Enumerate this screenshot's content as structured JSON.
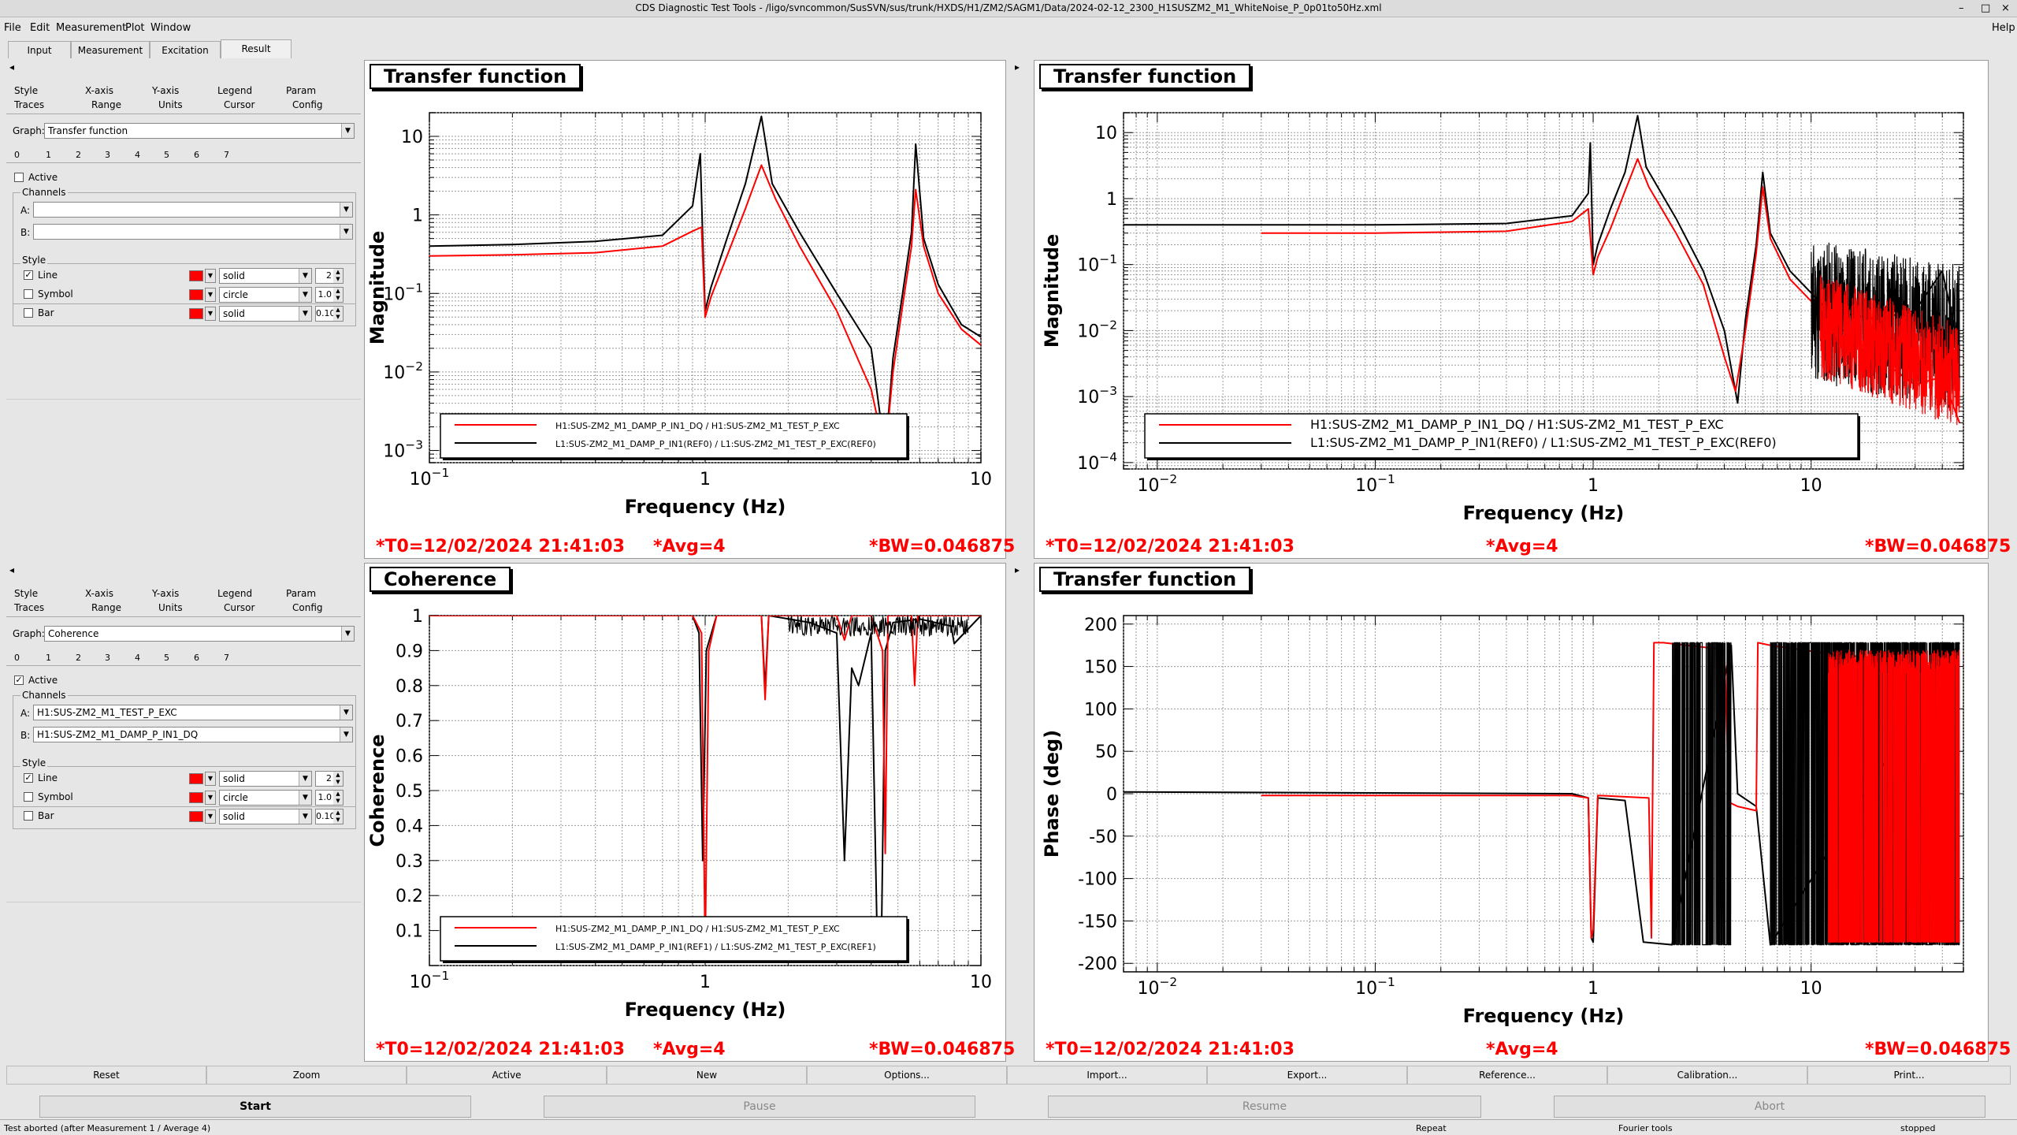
{
  "window": {
    "title": "CDS Diagnostic Test Tools - /ligo/svncommon/SusSVN/sus/trunk/HXDS/H1/ZM2/SAGM1/Data/2024-02-12_2300_H1SUSZM2_M1_WhiteNoise_P_0p01to50Hz.xml",
    "controls": [
      "–",
      "□",
      "×"
    ]
  },
  "menu": {
    "items": [
      "File",
      "Edit",
      "Measurement",
      "Plot",
      "Window"
    ],
    "help": "Help"
  },
  "main_tabs": [
    "Input",
    "Measurement",
    "Excitation",
    "Result"
  ],
  "left_panels": [
    {
      "tabs_row1": [
        "Style",
        "X-axis",
        "Y-axis",
        "Legend",
        "Param"
      ],
      "tabs_row2": [
        "Traces",
        "Range",
        "Units",
        "Cursor",
        "Config"
      ],
      "graph_label": "Graph:",
      "graph_value": "Transfer function",
      "trace_numbers": [
        "0",
        "1",
        "2",
        "3",
        "4",
        "5",
        "6",
        "7"
      ],
      "active_label": "Active",
      "active_checked": false,
      "channels_label": "Channels",
      "chan_a_label": "A:",
      "chan_a": "",
      "chan_b_label": "B:",
      "chan_b": "",
      "style_label": "Style",
      "line_label": "Line",
      "line_checked": true,
      "line_style": "solid",
      "line_width": "2",
      "symbol_label": "Symbol",
      "symbol_checked": false,
      "symbol_style": "circle",
      "symbol_size": "1.0",
      "bar_label": "Bar",
      "bar_checked": false,
      "bar_style": "solid",
      "bar_width": "0.10"
    },
    {
      "tabs_row1": [
        "Style",
        "X-axis",
        "Y-axis",
        "Legend",
        "Param"
      ],
      "tabs_row2": [
        "Traces",
        "Range",
        "Units",
        "Cursor",
        "Config"
      ],
      "graph_label": "Graph:",
      "graph_value": "Coherence",
      "trace_numbers": [
        "0",
        "1",
        "2",
        "3",
        "4",
        "5",
        "6",
        "7"
      ],
      "active_label": "Active",
      "active_checked": true,
      "channels_label": "Channels",
      "chan_a_label": "A:",
      "chan_a": "H1:SUS-ZM2_M1_TEST_P_EXC",
      "chan_b_label": "B:",
      "chan_b": "H1:SUS-ZM2_M1_DAMP_P_IN1_DQ",
      "style_label": "Style",
      "line_label": "Line",
      "line_checked": true,
      "line_style": "solid",
      "line_width": "2",
      "symbol_label": "Symbol",
      "symbol_checked": false,
      "symbol_style": "circle",
      "symbol_size": "1.0",
      "bar_label": "Bar",
      "bar_checked": false,
      "bar_style": "solid",
      "bar_width": "0.10"
    }
  ],
  "plots": [
    {
      "title": "Transfer function",
      "t0": "*T0=12/02/2024 21:41:03",
      "avg": "*Avg=4",
      "bw": "*BW=0.046875",
      "legend": [
        "H1:SUS-ZM2_M1_DAMP_P_IN1_DQ / H1:SUS-ZM2_M1_TEST_P_EXC",
        "L1:SUS-ZM2_M1_DAMP_P_IN1(REF0) / L1:SUS-ZM2_M1_TEST_P_EXC(REF0)"
      ]
    },
    {
      "title": "Transfer function",
      "t0": "*T0=12/02/2024 21:41:03",
      "avg": "*Avg=4",
      "bw": "*BW=0.046875",
      "legend": [
        "H1:SUS-ZM2_M1_DAMP_P_IN1_DQ / H1:SUS-ZM2_M1_TEST_P_EXC",
        "L1:SUS-ZM2_M1_DAMP_P_IN1(REF0) / L1:SUS-ZM2_M1_TEST_P_EXC(REF0)"
      ]
    },
    {
      "title": "Coherence",
      "t0": "*T0=12/02/2024 21:41:03",
      "avg": "*Avg=4",
      "bw": "*BW=0.046875",
      "legend": [
        "H1:SUS-ZM2_M1_DAMP_P_IN1_DQ / H1:SUS-ZM2_M1_TEST_P_EXC",
        "L1:SUS-ZM2_M1_DAMP_P_IN1(REF1) / L1:SUS-ZM2_M1_TEST_P_EXC(REF1)"
      ]
    },
    {
      "title": "Transfer function",
      "t0": "*T0=12/02/2024 21:41:03",
      "avg": "*Avg=4",
      "bw": "*BW=0.046875",
      "legend": []
    }
  ],
  "chart_data": [
    {
      "type": "line",
      "title": "Transfer function",
      "xlabel": "Frequency (Hz)",
      "ylabel": "Magnitude",
      "xscale": "log",
      "yscale": "log",
      "xlim": [
        0.1,
        10
      ],
      "ylim": [
        0.0007,
        20
      ],
      "x_ticks": [
        "10^-1",
        "1",
        "10"
      ],
      "y_ticks": [
        "10",
        "1",
        "10^-1",
        "10^-2",
        "10^-3"
      ],
      "grid": true,
      "legend_position": "bottom-center",
      "series": [
        {
          "name": "H1:SUS-ZM2_M1_DAMP_P_IN1_DQ / H1:SUS-ZM2_M1_TEST_P_EXC",
          "color": "#ff0000",
          "x": [
            0.1,
            0.2,
            0.4,
            0.7,
            0.9,
            0.97,
            1.0,
            1.05,
            1.2,
            1.4,
            1.6,
            1.8,
            2.2,
            3.0,
            4.0,
            4.5,
            4.8,
            5.2,
            5.6,
            5.8,
            6.2,
            7.0,
            8.5,
            10.0
          ],
          "y": [
            0.3,
            0.31,
            0.33,
            0.4,
            0.62,
            0.7,
            0.05,
            0.09,
            0.3,
            1.2,
            4.3,
            1.6,
            0.4,
            0.06,
            0.006,
            0.0009,
            0.01,
            0.07,
            0.4,
            2.1,
            0.4,
            0.1,
            0.035,
            0.022
          ]
        },
        {
          "name": "L1:SUS-ZM2_M1_DAMP_P_IN1(REF0) / L1:SUS-ZM2_M1_TEST_P_EXC(REF0)",
          "color": "#000000",
          "x": [
            0.1,
            0.2,
            0.4,
            0.7,
            0.9,
            0.96,
            0.98,
            1.0,
            1.05,
            1.2,
            1.4,
            1.6,
            1.75,
            2.2,
            3.0,
            4.0,
            4.5,
            4.8,
            5.2,
            5.6,
            5.8,
            6.2,
            7.0,
            8.5,
            10.0
          ],
          "y": [
            0.4,
            0.42,
            0.46,
            0.55,
            1.3,
            6.0,
            0.5,
            0.06,
            0.12,
            0.5,
            2.5,
            18.0,
            2.5,
            0.6,
            0.1,
            0.02,
            0.0009,
            0.015,
            0.1,
            0.6,
            8.0,
            0.5,
            0.13,
            0.04,
            0.028
          ]
        }
      ]
    },
    {
      "type": "line",
      "title": "Transfer function",
      "xlabel": "Frequency (Hz)",
      "ylabel": "Magnitude",
      "xscale": "log",
      "yscale": "log",
      "xlim": [
        0.007,
        50
      ],
      "ylim": [
        8e-05,
        20
      ],
      "x_ticks": [
        "10^-2",
        "10^-1",
        "1",
        "10"
      ],
      "y_ticks": [
        "10",
        "1",
        "10^-1",
        "10^-2",
        "10^-3",
        "10^-4"
      ],
      "grid": true,
      "legend_position": "bottom-center",
      "series": [
        {
          "name": "H1:SUS-ZM2_M1_DAMP_P_IN1_DQ / H1:SUS-ZM2_M1_TEST_P_EXC",
          "color": "#ff0000",
          "x": [
            0.03,
            0.1,
            0.4,
            0.8,
            0.95,
            1.0,
            1.05,
            1.2,
            1.4,
            1.6,
            1.8,
            2.4,
            3.2,
            4.0,
            4.5,
            5.0,
            5.6,
            6.0,
            6.5,
            8.0,
            12,
            20,
            30,
            40,
            48
          ],
          "y": [
            0.3,
            0.3,
            0.32,
            0.45,
            0.7,
            0.07,
            0.13,
            0.35,
            1.3,
            4.0,
            1.5,
            0.3,
            0.05,
            0.004,
            0.0012,
            0.01,
            0.15,
            1.5,
            0.25,
            0.06,
            0.015,
            0.004,
            0.0015,
            0.002,
            0.0004
          ]
        },
        {
          "name": "L1:SUS-ZM2_M1_DAMP_P_IN1(REF0) / L1:SUS-ZM2_M1_TEST_P_EXC(REF0)",
          "color": "#000000",
          "x": [
            0.007,
            0.1,
            0.4,
            0.8,
            0.95,
            0.97,
            1.0,
            1.05,
            1.2,
            1.4,
            1.6,
            1.75,
            2.4,
            3.2,
            4.0,
            4.6,
            5.0,
            5.6,
            6.0,
            6.5,
            8.0,
            12,
            20,
            30,
            40,
            48
          ],
          "y": [
            0.4,
            0.4,
            0.42,
            0.55,
            1.2,
            7.0,
            0.1,
            0.2,
            0.7,
            2.5,
            18.0,
            3.0,
            0.5,
            0.08,
            0.01,
            0.0008,
            0.015,
            0.2,
            2.5,
            0.3,
            0.08,
            0.02,
            0.015,
            0.02,
            0.08,
            0.005
          ]
        }
      ]
    },
    {
      "type": "line",
      "title": "Coherence",
      "xlabel": "Frequency (Hz)",
      "ylabel": "Coherence",
      "xscale": "log",
      "yscale": "linear",
      "xlim": [
        0.1,
        10
      ],
      "ylim": [
        0,
        1
      ],
      "x_ticks": [
        "10^-1",
        "1",
        "10"
      ],
      "y_ticks": [
        "0.1",
        "0.2",
        "0.3",
        "0.4",
        "0.5",
        "0.6",
        "0.7",
        "0.8",
        "0.9",
        "1"
      ],
      "grid": true,
      "legend_position": "bottom-center",
      "series": [
        {
          "name": "H1:SUS-ZM2_M1_DAMP_P_IN1_DQ / H1:SUS-ZM2_M1_TEST_P_EXC",
          "color": "#ff0000",
          "x": [
            0.1,
            0.9,
            0.97,
            1.0,
            1.03,
            1.1,
            1.6,
            1.65,
            1.7,
            3.0,
            3.2,
            3.4,
            4.0,
            4.4,
            4.5,
            4.6,
            5.6,
            5.75,
            5.9,
            10.0
          ],
          "y": [
            1.0,
            1.0,
            0.95,
            0.03,
            0.9,
            1.0,
            1.0,
            0.76,
            1.0,
            1.0,
            0.93,
            1.0,
            1.0,
            0.9,
            0.32,
            1.0,
            1.0,
            0.8,
            1.0,
            1.0
          ]
        },
        {
          "name": "L1:SUS-ZM2_M1_DAMP_P_IN1(REF1) / L1:SUS-ZM2_M1_TEST_P_EXC(REF1)",
          "color": "#000000",
          "x": [
            0.1,
            0.9,
            0.95,
            0.98,
            1.01,
            1.1,
            1.6,
            1.65,
            1.7,
            2.4,
            3.0,
            3.2,
            3.4,
            3.6,
            4.0,
            4.2,
            4.35,
            4.5,
            4.8,
            6.0,
            7.8,
            8.0,
            10.0
          ],
          "y": [
            1.0,
            1.0,
            0.95,
            0.3,
            0.9,
            1.0,
            1.0,
            0.79,
            1.0,
            0.98,
            0.95,
            0.3,
            0.85,
            0.8,
            0.95,
            0.1,
            0.03,
            0.9,
            0.98,
            0.99,
            0.97,
            0.92,
            1.0
          ]
        }
      ]
    },
    {
      "type": "line",
      "title": "Transfer function",
      "xlabel": "Frequency (Hz)",
      "ylabel": "Phase (deg)",
      "xscale": "log",
      "yscale": "linear",
      "xlim": [
        0.007,
        50
      ],
      "ylim": [
        -210,
        210
      ],
      "x_ticks": [
        "10^-2",
        "10^-1",
        "1",
        "10"
      ],
      "y_ticks": [
        "200",
        "150",
        "100",
        "50",
        "0",
        "-50",
        "-100",
        "-150",
        "-200"
      ],
      "grid": true,
      "series": [
        {
          "name": "H1:SUS-ZM2_M1_DAMP_P_IN1_DQ / H1:SUS-ZM2_M1_TEST_P_EXC",
          "color": "#ff0000",
          "x": [
            0.03,
            0.8,
            0.95,
            0.98,
            1.0,
            1.05,
            1.8,
            1.85,
            1.9,
            2.1,
            4.0,
            4.2,
            4.6,
            5.6,
            5.7,
            6.5,
            12,
            20,
            48
          ],
          "y": [
            -2,
            -2,
            -5,
            -170,
            -160,
            -2,
            -5,
            -170,
            178,
            178,
            170,
            -10,
            -15,
            -20,
            178,
            175,
            165,
            160,
            150
          ]
        },
        {
          "name": "L1:SUS-ZM2_M1_DAMP_P_IN1(REF0) / L1:SUS-ZM2_M1_TEST_P_EXC(REF0)",
          "color": "#000000",
          "x": [
            0.007,
            0.8,
            0.95,
            0.98,
            1.0,
            1.05,
            1.4,
            1.7,
            2.3,
            4.3,
            4.6,
            5.6,
            6.5,
            48
          ],
          "y": [
            2,
            0,
            -5,
            -170,
            -175,
            -5,
            -8,
            -175,
            -178,
            175,
            0,
            -15,
            -178,
            178
          ]
        }
      ],
      "dense_oscillation_bands_hz": {
        "black": [
          [
            2.3,
            4.3
          ],
          [
            6.5,
            48
          ]
        ],
        "red": [
          [
            12,
            48
          ]
        ]
      }
    }
  ],
  "bottom_buttons": [
    "Reset",
    "Zoom",
    "Active",
    "New",
    "Options...",
    "Import...",
    "Export...",
    "Reference...",
    "Calibration...",
    "Print..."
  ],
  "control_buttons": [
    "Start",
    "Pause",
    "Resume",
    "Abort"
  ],
  "status": {
    "message": "Test aborted (after Measurement 1 / Average 4)",
    "repeat": "Repeat",
    "tools": "Fourier tools",
    "state": "stopped"
  }
}
